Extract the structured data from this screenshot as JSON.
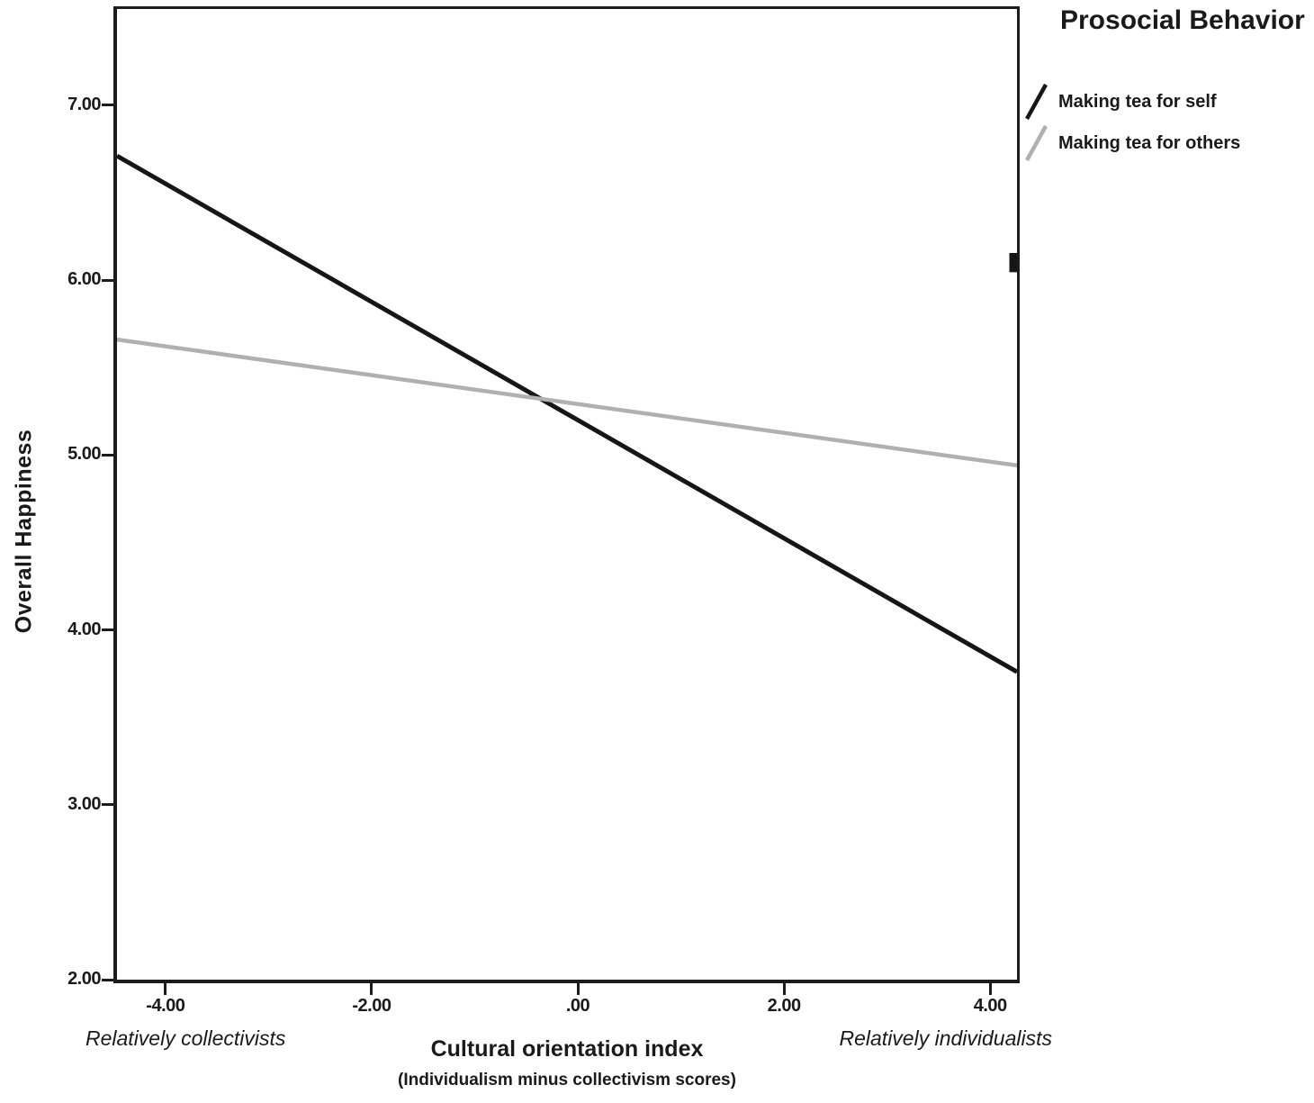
{
  "chart_data": {
    "type": "line",
    "legend_title": "Prosocial Behavior",
    "xlabel": "Cultural orientation index",
    "xlabel_sub": "(Individualism minus collectivism scores)",
    "ylabel": "Overall Happiness",
    "xlim": [
      -4.47,
      4.26
    ],
    "ylim": [
      2.0,
      7.55
    ],
    "grid": false,
    "legend_position": "top-right-outside",
    "x_ticks": [
      {
        "v": -4,
        "label": "-4.00"
      },
      {
        "v": -2,
        "label": "-2.00"
      },
      {
        "v": 0,
        "label": ".00"
      },
      {
        "v": 2,
        "label": "2.00"
      },
      {
        "v": 4,
        "label": "4.00"
      }
    ],
    "y_ticks": [
      {
        "v": 7,
        "label": "7.00"
      },
      {
        "v": 6,
        "label": "6.00"
      },
      {
        "v": 5,
        "label": "5.00"
      },
      {
        "v": 4,
        "label": "4.00"
      },
      {
        "v": 3,
        "label": "3.00"
      },
      {
        "v": 2,
        "label": "2.00"
      }
    ],
    "series": [
      {
        "name": "Making tea for self",
        "color": "#161616",
        "width": 5,
        "x": [
          -4.47,
          4.26
        ],
        "y": [
          6.71,
          3.76
        ]
      },
      {
        "name": "Making tea for others",
        "color": "#b0b0b0",
        "width": 4.5,
        "x": [
          -4.47,
          4.26
        ],
        "y": [
          5.66,
          4.94
        ]
      }
    ],
    "stray_mark": {
      "x": 4.26,
      "y": 6.1,
      "half_height": 0.055
    },
    "annotations": [
      "Relatively collectivists",
      "Relatively individualists"
    ],
    "colors": {
      "frame": "#1c1c1c",
      "background": "#ffffff",
      "black_line": "#161616",
      "gray_line": "#b0b0b0"
    }
  }
}
